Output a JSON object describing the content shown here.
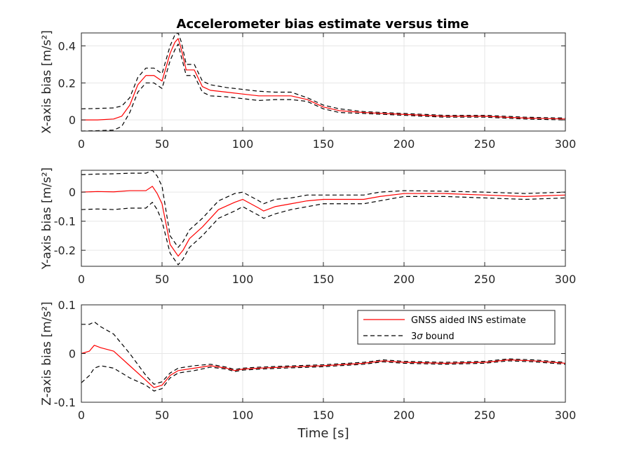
{
  "figure": {
    "title": "Accelerometer bias estimate versus time",
    "xlabel": "Time [s]"
  },
  "legend": {
    "estimate_label": "GNSS aided INS estimate",
    "bound_label_prefix": "3",
    "bound_label_sigma": "σ",
    "bound_label_suffix": " bound"
  },
  "colors": {
    "estimate": "#ff0000",
    "bound": "#000000",
    "grid": "#e6e6e6",
    "axes": "#262626"
  },
  "chart_data": [
    {
      "type": "line",
      "ylabel": "X-axis bias [m/s²]",
      "xlim": [
        0,
        300
      ],
      "ylim": [
        -0.06,
        0.47
      ],
      "xticks": [
        0,
        50,
        100,
        150,
        200,
        250,
        300
      ],
      "yticks": [
        0,
        0.2,
        0.4
      ],
      "ytick_labels": [
        "0",
        "0.2",
        "0.4"
      ],
      "grid": true,
      "x": [
        0,
        10,
        20,
        25,
        30,
        35,
        40,
        45,
        50,
        55,
        58,
        60,
        62,
        65,
        70,
        75,
        80,
        90,
        100,
        110,
        120,
        130,
        140,
        150,
        160,
        175,
        200,
        225,
        250,
        275,
        300
      ],
      "series": [
        {
          "name": "GNSS aided INS estimate",
          "values": [
            0.0,
            0.0,
            0.005,
            0.02,
            0.08,
            0.19,
            0.24,
            0.24,
            0.21,
            0.36,
            0.42,
            0.44,
            0.38,
            0.27,
            0.27,
            0.18,
            0.16,
            0.15,
            0.14,
            0.13,
            0.13,
            0.13,
            0.11,
            0.07,
            0.05,
            0.04,
            0.03,
            0.02,
            0.02,
            0.01,
            0.005
          ]
        },
        {
          "name": "3σ bound (upper)",
          "values": [
            0.06,
            0.062,
            0.065,
            0.075,
            0.12,
            0.23,
            0.28,
            0.28,
            0.25,
            0.4,
            0.46,
            0.47,
            0.42,
            0.3,
            0.3,
            0.21,
            0.19,
            0.175,
            0.165,
            0.155,
            0.15,
            0.15,
            0.12,
            0.08,
            0.06,
            0.045,
            0.035,
            0.025,
            0.025,
            0.015,
            0.01
          ]
        },
        {
          "name": "3σ bound (lower)",
          "values": [
            -0.06,
            -0.058,
            -0.055,
            -0.035,
            0.04,
            0.15,
            0.2,
            0.2,
            0.17,
            0.32,
            0.38,
            0.41,
            0.34,
            0.24,
            0.24,
            0.15,
            0.13,
            0.125,
            0.115,
            0.105,
            0.11,
            0.11,
            0.1,
            0.06,
            0.04,
            0.035,
            0.025,
            0.015,
            0.015,
            0.005,
            0.0
          ]
        }
      ]
    },
    {
      "type": "line",
      "ylabel": "Y-axis bias [m/s²]",
      "xlim": [
        0,
        300
      ],
      "ylim": [
        -0.255,
        0.075
      ],
      "xticks": [
        0,
        50,
        100,
        150,
        200,
        250,
        300
      ],
      "yticks": [
        0,
        -0.1,
        -0.2
      ],
      "ytick_labels": [
        "0",
        "-0.1",
        "-0.2"
      ],
      "grid": true,
      "x": [
        0,
        10,
        20,
        30,
        40,
        44,
        47,
        50,
        55,
        60,
        63,
        67,
        75,
        85,
        95,
        100,
        105,
        110,
        113,
        120,
        130,
        140,
        150,
        175,
        185,
        200,
        225,
        250,
        275,
        300
      ],
      "series": [
        {
          "name": "GNSS aided INS estimate",
          "values": [
            0.0,
            0.002,
            0.001,
            0.005,
            0.005,
            0.02,
            -0.005,
            -0.04,
            -0.18,
            -0.22,
            -0.2,
            -0.16,
            -0.12,
            -0.06,
            -0.035,
            -0.025,
            -0.04,
            -0.055,
            -0.065,
            -0.05,
            -0.04,
            -0.03,
            -0.025,
            -0.025,
            -0.015,
            -0.005,
            -0.005,
            -0.01,
            -0.015,
            -0.01
          ]
        },
        {
          "name": "3σ bound (upper)",
          "values": [
            0.06,
            0.062,
            0.063,
            0.065,
            0.065,
            0.075,
            0.055,
            0.02,
            -0.15,
            -0.19,
            -0.17,
            -0.13,
            -0.09,
            -0.03,
            -0.005,
            0.0,
            -0.015,
            -0.03,
            -0.04,
            -0.025,
            -0.02,
            -0.01,
            -0.01,
            -0.01,
            0.0,
            0.005,
            0.003,
            0.0,
            -0.005,
            0.0
          ]
        },
        {
          "name": "3σ bound (lower)",
          "values": [
            -0.06,
            -0.058,
            -0.06,
            -0.055,
            -0.055,
            -0.035,
            -0.06,
            -0.1,
            -0.21,
            -0.25,
            -0.23,
            -0.19,
            -0.15,
            -0.09,
            -0.065,
            -0.05,
            -0.065,
            -0.08,
            -0.09,
            -0.075,
            -0.06,
            -0.05,
            -0.04,
            -0.04,
            -0.03,
            -0.015,
            -0.015,
            -0.02,
            -0.025,
            -0.02
          ]
        }
      ]
    },
    {
      "type": "line",
      "ylabel": "Z-axis bias [m/s²]",
      "xlim": [
        0,
        300
      ],
      "ylim": [
        -0.1,
        0.1
      ],
      "xticks": [
        0,
        50,
        100,
        150,
        200,
        250,
        300
      ],
      "yticks": [
        0.1,
        0,
        -0.1
      ],
      "ytick_labels": [
        "0.1",
        "0",
        "-0.1"
      ],
      "grid": true,
      "x": [
        0,
        5,
        8,
        12,
        20,
        30,
        40,
        45,
        50,
        55,
        60,
        70,
        80,
        90,
        95,
        100,
        110,
        125,
        150,
        175,
        187,
        200,
        225,
        250,
        265,
        280,
        300
      ],
      "series": [
        {
          "name": "GNSS aided INS estimate",
          "values": [
            0.0,
            0.005,
            0.017,
            0.012,
            0.005,
            -0.025,
            -0.055,
            -0.07,
            -0.065,
            -0.045,
            -0.035,
            -0.03,
            -0.025,
            -0.03,
            -0.035,
            -0.032,
            -0.03,
            -0.028,
            -0.025,
            -0.02,
            -0.015,
            -0.018,
            -0.02,
            -0.018,
            -0.013,
            -0.015,
            -0.02
          ]
        },
        {
          "name": "3σ bound (upper)",
          "values": [
            0.06,
            0.06,
            0.065,
            0.055,
            0.04,
            0.0,
            -0.045,
            -0.063,
            -0.058,
            -0.04,
            -0.03,
            -0.025,
            -0.022,
            -0.028,
            -0.033,
            -0.03,
            -0.028,
            -0.026,
            -0.023,
            -0.018,
            -0.013,
            -0.016,
            -0.018,
            -0.016,
            -0.011,
            -0.013,
            -0.018
          ]
        },
        {
          "name": "3σ bound (lower)",
          "values": [
            -0.06,
            -0.045,
            -0.03,
            -0.025,
            -0.03,
            -0.05,
            -0.065,
            -0.077,
            -0.072,
            -0.05,
            -0.04,
            -0.035,
            -0.028,
            -0.032,
            -0.037,
            -0.034,
            -0.032,
            -0.03,
            -0.027,
            -0.022,
            -0.017,
            -0.02,
            -0.022,
            -0.02,
            -0.015,
            -0.017,
            -0.022
          ]
        }
      ]
    }
  ]
}
